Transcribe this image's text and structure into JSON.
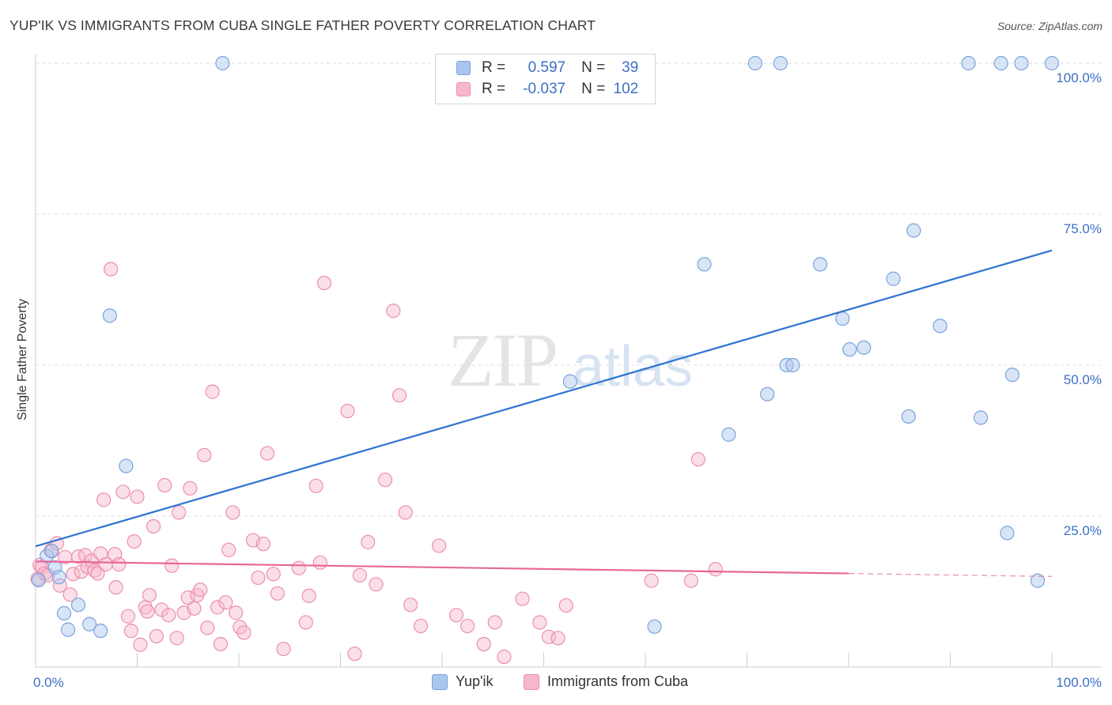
{
  "title": "YUP'IK VS IMMIGRANTS FROM CUBA SINGLE FATHER POVERTY CORRELATION CHART",
  "source": "Source: ZipAtlas.com",
  "watermark": {
    "zip": "ZIP",
    "atlas": "atlas"
  },
  "legend": {
    "rows": [
      {
        "r_label": "R =",
        "r_value": "0.597",
        "n_label": "N =",
        "n_value": "39"
      },
      {
        "r_label": "R =",
        "r_value": "-0.037",
        "n_label": "N =",
        "n_value": "102"
      }
    ]
  },
  "bottom_legend": {
    "series1": "Yup'ik",
    "series2": "Immigrants from Cuba"
  },
  "colors": {
    "blue_fill": "#a9c6ee",
    "blue_stroke": "#7aa3dc",
    "blue_line": "#2f73d2",
    "pink_fill": "#f6b8cb",
    "pink_stroke": "#ec8fab",
    "pink_line": "#e8669a",
    "tick_text": "#3d6fc4",
    "grid": "#dddddd"
  },
  "chart_data": {
    "type": "scatter",
    "title": "YUP'IK VS IMMIGRANTS FROM CUBA SINGLE FATHER POVERTY CORRELATION CHART",
    "xlabel": "",
    "ylabel": "Single Father Poverty",
    "xlim": [
      0,
      100
    ],
    "ylim": [
      0,
      100
    ],
    "x_tick_labels": [
      {
        "value": 0,
        "label": "0.0%"
      },
      {
        "value": 100,
        "label": "100.0%"
      }
    ],
    "y_tick_labels": [
      {
        "value": 25,
        "label": "25.0%"
      },
      {
        "value": 50,
        "label": "50.0%"
      },
      {
        "value": 75,
        "label": "75.0%"
      },
      {
        "value": 100,
        "label": "100.0%"
      }
    ],
    "x_minor_ticks": [
      0,
      10,
      20,
      30,
      40,
      50,
      60,
      70,
      80,
      90,
      100
    ],
    "series": [
      {
        "name": "Yup'ik",
        "r": 0.597,
        "n": 39,
        "trend": {
          "x0": 0,
          "y0": 20.0,
          "x1": 100,
          "y1": 69.0,
          "dashed_from": null
        },
        "points": [
          [
            0.3,
            14.4
          ],
          [
            1.1,
            18.4
          ],
          [
            1.6,
            19.2
          ],
          [
            1.9,
            16.5
          ],
          [
            2.3,
            14.9
          ],
          [
            2.8,
            8.9
          ],
          [
            3.2,
            6.2
          ],
          [
            4.2,
            10.3
          ],
          [
            5.3,
            7.1
          ],
          [
            6.4,
            6.0
          ],
          [
            7.3,
            58.2
          ],
          [
            8.9,
            33.3
          ],
          [
            18.4,
            100.0
          ],
          [
            52.6,
            47.3
          ],
          [
            60.9,
            6.7
          ],
          [
            65.8,
            66.7
          ],
          [
            68.2,
            38.5
          ],
          [
            70.8,
            100.0
          ],
          [
            72.0,
            45.2
          ],
          [
            73.3,
            100.0
          ],
          [
            73.9,
            50.0
          ],
          [
            74.5,
            50.0
          ],
          [
            77.2,
            66.7
          ],
          [
            79.4,
            57.7
          ],
          [
            80.1,
            52.6
          ],
          [
            81.5,
            52.9
          ],
          [
            84.4,
            64.3
          ],
          [
            85.9,
            41.5
          ],
          [
            86.4,
            72.3
          ],
          [
            89.0,
            56.5
          ],
          [
            91.8,
            100.0
          ],
          [
            93.0,
            41.3
          ],
          [
            95.0,
            100.0
          ],
          [
            95.6,
            22.2
          ],
          [
            96.1,
            48.4
          ],
          [
            97.0,
            100.0
          ],
          [
            98.6,
            14.3
          ],
          [
            100.0,
            100.0
          ]
        ]
      },
      {
        "name": "Immigrants from Cuba",
        "r": -0.037,
        "n": 102,
        "trend": {
          "x0": 0,
          "y0": 17.5,
          "x1": 100,
          "y1": 15.0,
          "dashed_from": 80
        },
        "points": [
          [
            0.2,
            14.6
          ],
          [
            0.4,
            16.9
          ],
          [
            0.6,
            16.5
          ],
          [
            0.9,
            15.5
          ],
          [
            1.2,
            15.2
          ],
          [
            1.5,
            19.3
          ],
          [
            2.1,
            20.5
          ],
          [
            2.4,
            13.5
          ],
          [
            2.9,
            18.2
          ],
          [
            3.4,
            12.0
          ],
          [
            3.7,
            15.4
          ],
          [
            4.2,
            18.3
          ],
          [
            4.5,
            15.8
          ],
          [
            4.9,
            18.5
          ],
          [
            5.1,
            16.6
          ],
          [
            5.5,
            17.6
          ],
          [
            5.8,
            16.0
          ],
          [
            6.1,
            15.5
          ],
          [
            6.4,
            18.8
          ],
          [
            6.7,
            27.7
          ],
          [
            6.9,
            17.0
          ],
          [
            7.4,
            65.9
          ],
          [
            7.8,
            18.7
          ],
          [
            7.9,
            13.2
          ],
          [
            8.2,
            17.0
          ],
          [
            8.6,
            29.0
          ],
          [
            9.1,
            8.4
          ],
          [
            9.4,
            6.0
          ],
          [
            9.7,
            20.8
          ],
          [
            10.0,
            28.2
          ],
          [
            10.3,
            3.7
          ],
          [
            10.8,
            9.9
          ],
          [
            11.0,
            9.2
          ],
          [
            11.2,
            11.9
          ],
          [
            11.6,
            23.3
          ],
          [
            11.9,
            5.1
          ],
          [
            12.4,
            9.5
          ],
          [
            12.7,
            30.1
          ],
          [
            13.1,
            8.6
          ],
          [
            13.4,
            16.8
          ],
          [
            13.9,
            4.8
          ],
          [
            14.1,
            25.6
          ],
          [
            14.6,
            9.0
          ],
          [
            15.0,
            11.5
          ],
          [
            15.2,
            29.6
          ],
          [
            15.6,
            9.7
          ],
          [
            15.9,
            11.9
          ],
          [
            16.2,
            12.8
          ],
          [
            16.6,
            35.1
          ],
          [
            16.9,
            6.5
          ],
          [
            17.4,
            45.6
          ],
          [
            17.9,
            9.9
          ],
          [
            18.2,
            3.8
          ],
          [
            18.7,
            10.7
          ],
          [
            19.0,
            19.4
          ],
          [
            19.4,
            25.6
          ],
          [
            19.7,
            9.0
          ],
          [
            20.1,
            6.6
          ],
          [
            20.5,
            5.7
          ],
          [
            21.4,
            21.0
          ],
          [
            21.9,
            14.8
          ],
          [
            22.4,
            20.4
          ],
          [
            22.8,
            35.4
          ],
          [
            23.4,
            15.4
          ],
          [
            23.8,
            12.2
          ],
          [
            24.4,
            3.0
          ],
          [
            25.9,
            16.4
          ],
          [
            26.6,
            7.4
          ],
          [
            26.9,
            11.8
          ],
          [
            27.6,
            30.0
          ],
          [
            28.0,
            17.3
          ],
          [
            28.4,
            63.6
          ],
          [
            30.7,
            42.4
          ],
          [
            31.4,
            2.2
          ],
          [
            31.9,
            15.2
          ],
          [
            32.7,
            20.7
          ],
          [
            33.5,
            13.7
          ],
          [
            34.4,
            31.0
          ],
          [
            35.2,
            59.0
          ],
          [
            35.8,
            45.0
          ],
          [
            36.4,
            25.6
          ],
          [
            36.9,
            10.3
          ],
          [
            37.9,
            6.8
          ],
          [
            39.7,
            20.1
          ],
          [
            41.4,
            8.6
          ],
          [
            42.5,
            6.8
          ],
          [
            44.1,
            3.8
          ],
          [
            45.2,
            7.4
          ],
          [
            46.1,
            1.7
          ],
          [
            47.9,
            11.3
          ],
          [
            49.6,
            7.4
          ],
          [
            50.5,
            5.0
          ],
          [
            51.4,
            4.8
          ],
          [
            52.2,
            10.2
          ],
          [
            60.6,
            14.3
          ],
          [
            64.5,
            14.3
          ],
          [
            65.2,
            34.4
          ],
          [
            66.9,
            16.2
          ]
        ]
      }
    ]
  }
}
